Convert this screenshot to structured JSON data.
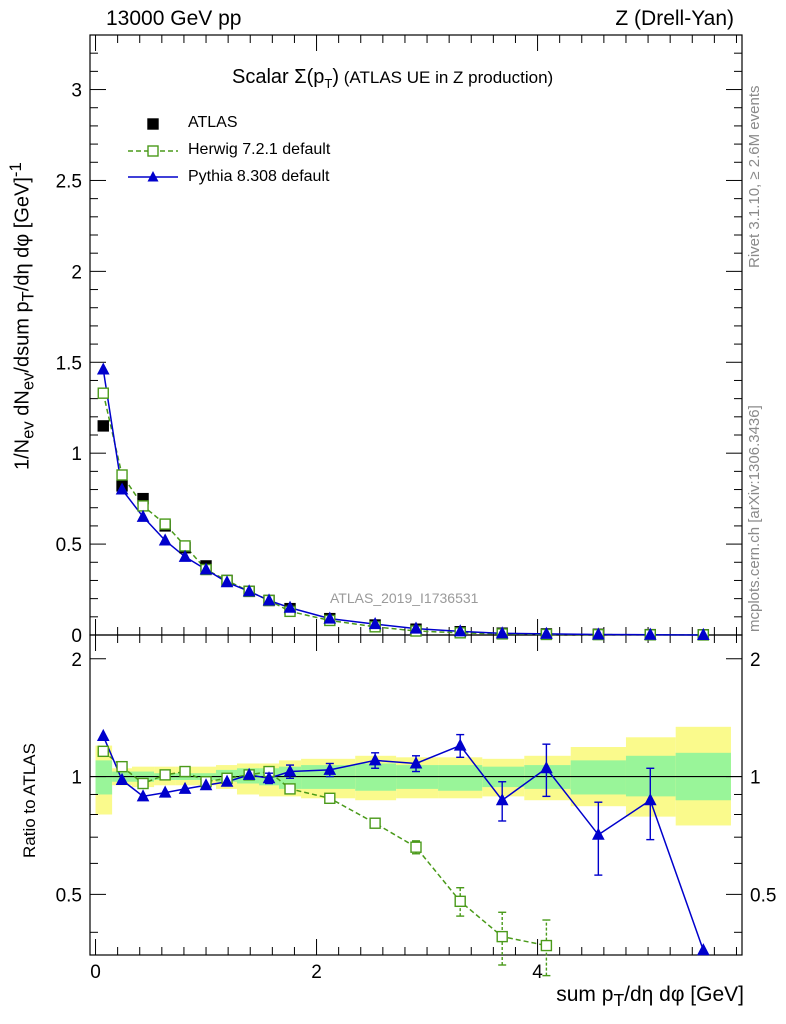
{
  "header": {
    "left": "13000 GeV pp",
    "right": "Z (Drell-Yan)"
  },
  "title": {
    "main": "Scalar Σ(p",
    "sub": "T",
    "close": ")",
    "paren": " (ATLAS UE in Z production)"
  },
  "watermark": "ATLAS_2019_I1736531",
  "side_labels": {
    "rivet": "Rivet 3.1.10, ≥ 2.6M events",
    "mcplots": "mcplots.cern.ch [arXiv:1306.3436]"
  },
  "axes": {
    "ylabel_top": "1/N_ev dN_ev/dsum p_T/dη dφ [GeV]^-1",
    "ylabel_bottom": "Ratio to ATLAS",
    "xlabel": "sum p_T/dη dφ [GeV]",
    "x_ticks": [
      "0",
      "2",
      "4"
    ],
    "y_ticks_top": [
      "0",
      "0.5",
      "1",
      "1.5",
      "2",
      "2.5",
      "3"
    ],
    "y_ticks_bottom": [
      "0.5",
      "1",
      "2"
    ]
  },
  "legend": [
    {
      "label": "ATLAS",
      "color": "#000000",
      "marker": "filled-square"
    },
    {
      "label": "Herwig 7.2.1 default",
      "color": "#4a9a1a",
      "marker": "open-square-dashed"
    },
    {
      "label": "Pythia 8.308 default",
      "color": "#0000cc",
      "marker": "filled-triangle-solid"
    }
  ],
  "chart_data": {
    "type": "scatter",
    "x_range": [
      -0.05,
      5.85
    ],
    "main_ylim": [
      0,
      3.3
    ],
    "ratio_ylim": [
      0.35,
      2.3
    ],
    "ratio_log_scale": true,
    "x": [
      0.07,
      0.24,
      0.43,
      0.63,
      0.81,
      1.0,
      1.19,
      1.39,
      1.57,
      1.76,
      2.12,
      2.53,
      2.9,
      3.3,
      3.68,
      4.08,
      4.55,
      5.02,
      5.5
    ],
    "series": [
      {
        "name": "ATLAS",
        "color": "#000000",
        "values": [
          1.15,
          0.82,
          0.75,
          0.6,
          0.48,
          0.38,
          0.3,
          0.24,
          0.19,
          0.145,
          0.09,
          0.055,
          0.032,
          0.018,
          0.01,
          0.006,
          0.004,
          0.002,
          0.001
        ]
      },
      {
        "name": "Herwig 7.2.1 default",
        "color": "#4a9a1a",
        "values": [
          1.33,
          0.88,
          0.71,
          0.61,
          0.49,
          0.36,
          0.3,
          0.24,
          0.19,
          0.13,
          0.08,
          0.045,
          0.022,
          0.012,
          0.006,
          0.003,
          0.002,
          0.001,
          0.0005
        ],
        "ratio": [
          1.16,
          1.06,
          0.96,
          1.01,
          1.03,
          0.97,
          0.99,
          1.01,
          1.03,
          0.93,
          0.88,
          0.76,
          0.66,
          0.48,
          0.39,
          0.37,
          null,
          null,
          null
        ],
        "ratio_err": [
          0,
          0,
          0,
          0,
          0,
          0,
          0,
          0,
          0,
          0,
          0,
          0.015,
          0.025,
          0.04,
          0.06,
          0.06,
          null,
          null,
          null
        ]
      },
      {
        "name": "Pythia 8.308 default",
        "color": "#0000cc",
        "values": [
          1.46,
          0.8,
          0.65,
          0.52,
          0.43,
          0.36,
          0.29,
          0.24,
          0.19,
          0.15,
          0.09,
          0.06,
          0.035,
          0.02,
          0.009,
          0.0065,
          0.003,
          0.0017,
          0.0003
        ],
        "ratio": [
          1.27,
          0.98,
          0.89,
          0.91,
          0.93,
          0.95,
          0.97,
          1.01,
          0.99,
          1.03,
          1.04,
          1.1,
          1.08,
          1.2,
          0.87,
          1.05,
          0.71,
          0.87,
          0.36
        ],
        "ratio_err": [
          0,
          0,
          0,
          0,
          0,
          0,
          0,
          0,
          0.03,
          0.04,
          0.04,
          0.05,
          0.05,
          0.08,
          0.1,
          0.16,
          0.15,
          0.18,
          0.0
        ]
      }
    ],
    "bands": {
      "x_edges": [
        0.0,
        0.15,
        0.33,
        0.53,
        0.72,
        0.9,
        1.09,
        1.28,
        1.48,
        1.66,
        1.86,
        2.35,
        2.72,
        3.1,
        3.5,
        3.88,
        4.3,
        4.8,
        5.25,
        5.75
      ],
      "inner_lo": [
        0.9,
        0.97,
        0.97,
        0.98,
        0.98,
        0.98,
        0.97,
        0.96,
        0.95,
        0.93,
        0.93,
        0.92,
        0.93,
        0.92,
        0.94,
        0.93,
        0.9,
        0.89,
        0.87
      ],
      "inner_hi": [
        1.1,
        1.03,
        1.03,
        1.02,
        1.02,
        1.02,
        1.04,
        1.05,
        1.05,
        1.06,
        1.07,
        1.08,
        1.07,
        1.07,
        1.06,
        1.07,
        1.1,
        1.13,
        1.15
      ],
      "outer_lo": [
        0.8,
        0.95,
        0.94,
        0.95,
        0.95,
        0.95,
        0.93,
        0.9,
        0.89,
        0.89,
        0.88,
        0.87,
        0.88,
        0.88,
        0.89,
        0.87,
        0.84,
        0.79,
        0.75
      ],
      "outer_hi": [
        1.2,
        1.05,
        1.06,
        1.06,
        1.06,
        1.06,
        1.07,
        1.08,
        1.08,
        1.1,
        1.11,
        1.13,
        1.12,
        1.12,
        1.11,
        1.13,
        1.19,
        1.26,
        1.34
      ],
      "inner_color": "#99f599",
      "outer_color": "#fafa8c"
    },
    "grid": false,
    "legend_position": "top-left"
  }
}
